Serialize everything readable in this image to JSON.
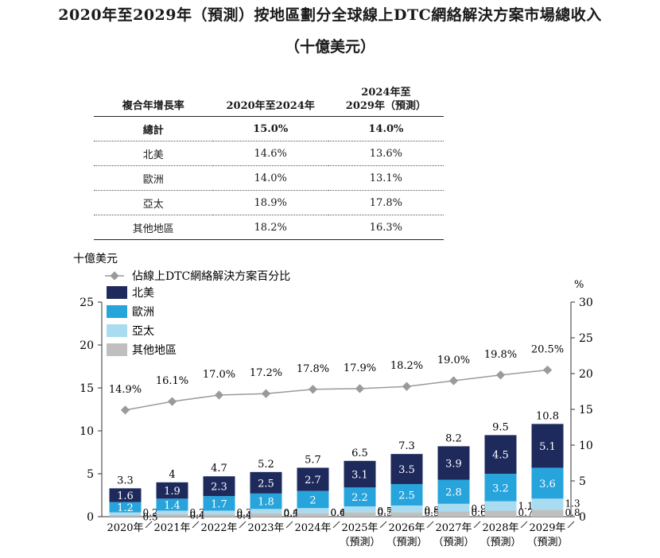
{
  "title": {
    "line1": "2020年至2029年（預測）按地區劃分全球線上DTC網絡解決方案市場總收入",
    "line2": "（十億美元）"
  },
  "cagr_table": {
    "headers": [
      "複合年增長率",
      "2020年至2024年",
      "2024年至",
      "2029年（預測）"
    ],
    "rows": [
      {
        "label": "總計",
        "a": "15.0%",
        "b": "14.0%"
      },
      {
        "label": "北美",
        "a": "14.6%",
        "b": "13.6%"
      },
      {
        "label": "歐洲",
        "a": "14.0%",
        "b": "13.1%"
      },
      {
        "label": "亞太",
        "a": "18.9%",
        "b": "17.8%"
      },
      {
        "label": "其他地區",
        "a": "18.2%",
        "b": "16.3%"
      }
    ]
  },
  "chart_data": {
    "type": "bar",
    "stacked": true,
    "categories": [
      "2020年",
      "2021年",
      "2022年",
      "2023年",
      "2024年",
      "2025年",
      "2026年",
      "2027年",
      "2028年",
      "2029年"
    ],
    "category_sublabels": [
      "",
      "",
      "",
      "",
      "",
      "（預測）",
      "（預測）",
      "（預測）",
      "（預測）",
      "（預測）"
    ],
    "series": [
      {
        "name": "其他地區",
        "color": "#bfbfbf",
        "values": [
          0.2,
          0.3,
          0.3,
          0.4,
          0.4,
          0.5,
          0.5,
          0.6,
          0.7,
          0.8
        ]
      },
      {
        "name": "亞太",
        "color": "#a9dcf0",
        "values": [
          0.3,
          0.4,
          0.4,
          0.5,
          0.6,
          0.7,
          0.8,
          0.9,
          1.1,
          1.3
        ]
      },
      {
        "name": "歐洲",
        "color": "#27a4dc",
        "values": [
          1.2,
          1.4,
          1.7,
          1.8,
          2.0,
          2.2,
          2.5,
          2.8,
          3.2,
          3.6
        ]
      },
      {
        "name": "北美",
        "color": "#1e2a5c",
        "values": [
          1.6,
          1.9,
          2.3,
          2.5,
          2.7,
          3.1,
          3.5,
          3.9,
          4.5,
          5.1
        ]
      }
    ],
    "totals": [
      3.3,
      4.0,
      4.7,
      5.2,
      5.7,
      6.5,
      7.3,
      8.2,
      9.5,
      10.8
    ],
    "line": {
      "name": "佔線上DTC網絡解決方案百分比",
      "color": "#9a9a9a",
      "axis": "right",
      "values": [
        14.9,
        16.1,
        17.0,
        17.2,
        17.8,
        17.9,
        18.2,
        19.0,
        19.8,
        20.5
      ],
      "labels": [
        "14.9%",
        "16.1%",
        "17.0%",
        "17.2%",
        "17.8%",
        "17.9%",
        "18.2%",
        "19.0%",
        "19.8%",
        "20.5%"
      ]
    },
    "ylabel_left": "十億美元",
    "ylabel_right": "%",
    "ylim_left": [
      0,
      25
    ],
    "ylim_right": [
      0,
      30
    ],
    "yticks_left": [
      0,
      5,
      10,
      15,
      20,
      25
    ],
    "yticks_right": [
      0,
      5,
      10,
      15,
      20,
      25,
      30
    ],
    "legend_position": "top-left",
    "grid": false
  }
}
